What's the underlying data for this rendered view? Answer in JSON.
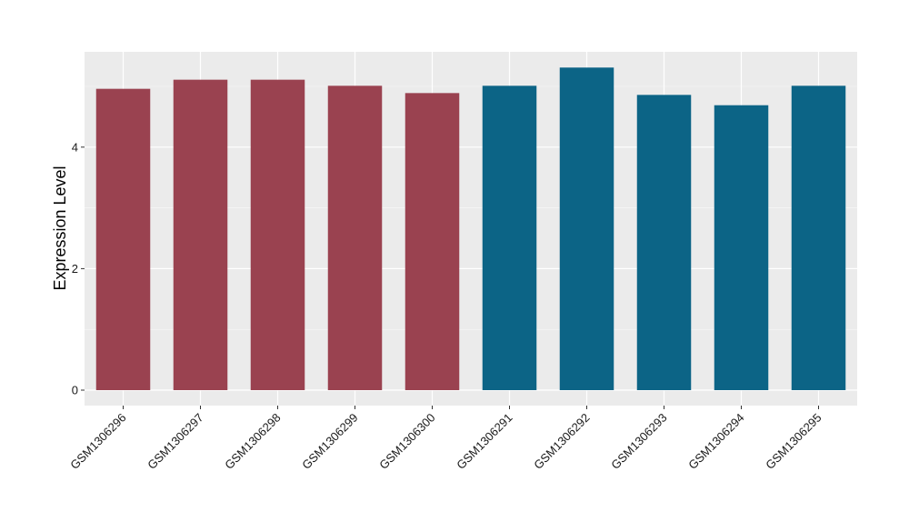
{
  "chart_data": {
    "type": "bar",
    "categories": [
      "GSM1306296",
      "GSM1306297",
      "GSM1306298",
      "GSM1306299",
      "GSM1306300",
      "GSM1306291",
      "GSM1306292",
      "GSM1306293",
      "GSM1306294",
      "GSM1306295"
    ],
    "values": [
      4.96,
      5.11,
      5.11,
      5.01,
      4.89,
      5.01,
      5.31,
      4.86,
      4.69,
      5.01
    ],
    "bar_colors": [
      "#9a4250",
      "#9a4250",
      "#9a4250",
      "#9a4250",
      "#9a4250",
      "#0c6486",
      "#0c6486",
      "#0c6486",
      "#0c6486",
      "#0c6486"
    ],
    "title": "",
    "xlabel": "",
    "ylabel": "Expression Level",
    "ylim": [
      -0.25,
      5.55
    ],
    "yticks": [
      0,
      2,
      4
    ],
    "ytick_labels": [
      "0",
      "2",
      "4"
    ],
    "grid": true,
    "panel_background": "#ebebeb",
    "grid_color": "#ffffff"
  }
}
